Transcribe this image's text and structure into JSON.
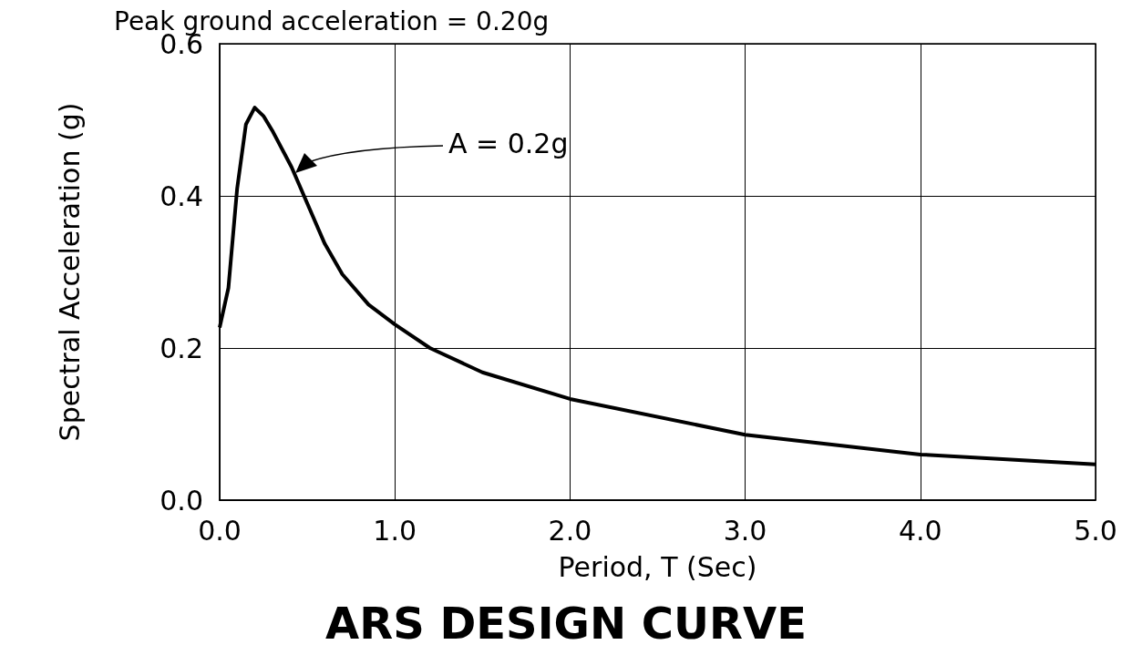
{
  "chart_data": {
    "type": "line",
    "title": "ARS DESIGN CURVE",
    "subtitle": "Peak ground acceleration = 0.20g",
    "xlabel": "Period, T (Sec)",
    "ylabel": "Spectral Acceleration (g)",
    "x": [
      0,
      0.05,
      0.1,
      0.15,
      0.2,
      0.25,
      0.3,
      0.41,
      0.6,
      0.7,
      0.85,
      1.0,
      1.2,
      1.5,
      2.0,
      3.0,
      4.0,
      5.0
    ],
    "series": [
      {
        "color": "#000000",
        "values": [
          0.227,
          0.279,
          0.41,
          0.494,
          0.516,
          0.505,
          0.486,
          0.438,
          0.337,
          0.297,
          0.257,
          0.231,
          0.2,
          0.168,
          0.133,
          0.086,
          0.06,
          0.047
        ]
      }
    ],
    "annotations": [
      "A = 0.2g"
    ],
    "xlim": [
      0,
      5
    ],
    "ylim": [
      0,
      0.6
    ],
    "xticks": [
      {
        "value": 0,
        "label": "0.0"
      },
      {
        "value": 1,
        "label": "1.0"
      },
      {
        "value": 2,
        "label": "2.0"
      },
      {
        "value": 3,
        "label": "3.0"
      },
      {
        "value": 4,
        "label": "4.0"
      },
      {
        "value": 5,
        "label": "5.0"
      }
    ],
    "yticks": [
      {
        "value": 0,
        "label": "0.0"
      },
      {
        "value": 0.2,
        "label": "0.2"
      },
      {
        "value": 0.4,
        "label": "0.4"
      },
      {
        "value": 0.6,
        "label": "0.6"
      }
    ],
    "grid": true,
    "marker": "none",
    "line_style": "solid"
  }
}
